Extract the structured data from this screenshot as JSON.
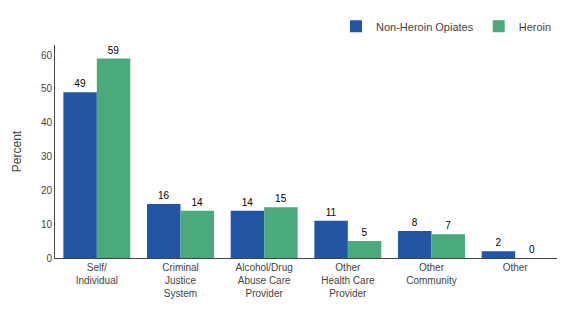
{
  "chart_data": {
    "type": "bar",
    "categories": [
      "Self/\nIndividual",
      "Criminal\nJustice\nSystem",
      "Alcohol/Drug\nAbuse Care\nProvider",
      "Other\nHealth Care\nProvider",
      "Other\nCommunity",
      "Other"
    ],
    "series": [
      {
        "name": "Non-Heroin Opiates",
        "color": "#2255a4",
        "values": [
          49,
          16,
          14,
          11,
          8,
          2
        ]
      },
      {
        "name": "Heroin",
        "color": "#4aaa7b",
        "values": [
          59,
          14,
          15,
          5,
          7,
          0
        ]
      }
    ],
    "ylabel": "Percent",
    "ylim": [
      0,
      63
    ],
    "yticks": [
      0,
      10,
      20,
      30,
      40,
      50,
      60
    ],
    "grid": false,
    "legend": "upper right",
    "data_labels": true
  }
}
